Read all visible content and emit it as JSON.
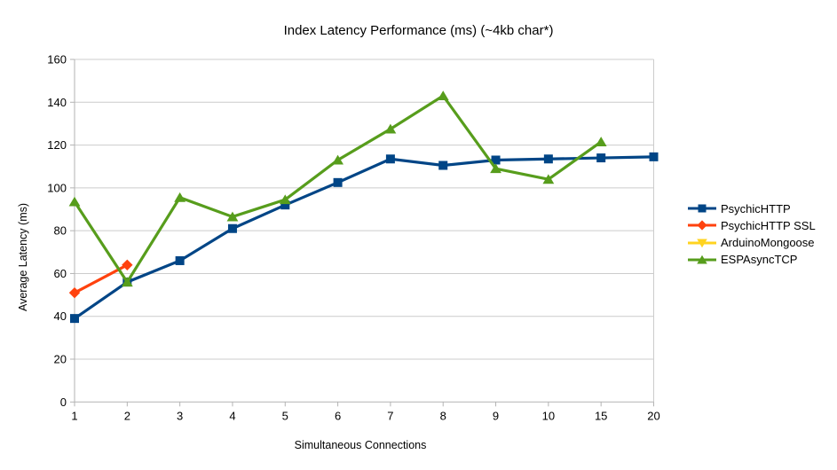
{
  "chart_data": {
    "type": "line",
    "title": "Index Latency Performance (ms) (~4kb char*)",
    "xlabel": "Simultaneous Connections",
    "ylabel": "Average Latency (ms)",
    "categories": [
      "1",
      "2",
      "3",
      "4",
      "5",
      "6",
      "7",
      "8",
      "9",
      "10",
      "15",
      "20"
    ],
    "ylim": [
      0,
      160
    ],
    "y_ticks": [
      0,
      20,
      40,
      60,
      80,
      100,
      120,
      140,
      160
    ],
    "grid": "horizontal",
    "legend_position": "right",
    "series": [
      {
        "name": "PsychicHTTP",
        "marker": "square",
        "color": "#004586",
        "values": [
          39,
          56,
          66,
          81,
          92,
          102.5,
          113.5,
          110.5,
          113,
          113.5,
          114,
          114.5
        ]
      },
      {
        "name": "PsychicHTTP SSL",
        "marker": "diamond",
        "color": "#ff420e",
        "values": [
          51,
          64,
          null,
          null,
          null,
          null,
          null,
          null,
          null,
          null,
          null,
          null
        ]
      },
      {
        "name": "ArduinoMongoose",
        "marker": "triangle-down",
        "color": "#ffd320",
        "values": [
          null,
          null,
          null,
          null,
          null,
          null,
          null,
          null,
          null,
          null,
          null,
          null
        ]
      },
      {
        "name": "ESPAsyncTCP",
        "marker": "triangle-up",
        "color": "#579d1c",
        "values": [
          93.5,
          56,
          95.5,
          86.5,
          94.5,
          113,
          127.5,
          143,
          109,
          104,
          121.5,
          null
        ]
      }
    ]
  },
  "colors": {
    "background": "#ffffff",
    "gridline": "#cccccc",
    "axis": "#b3b3b3",
    "text": "#000000"
  }
}
